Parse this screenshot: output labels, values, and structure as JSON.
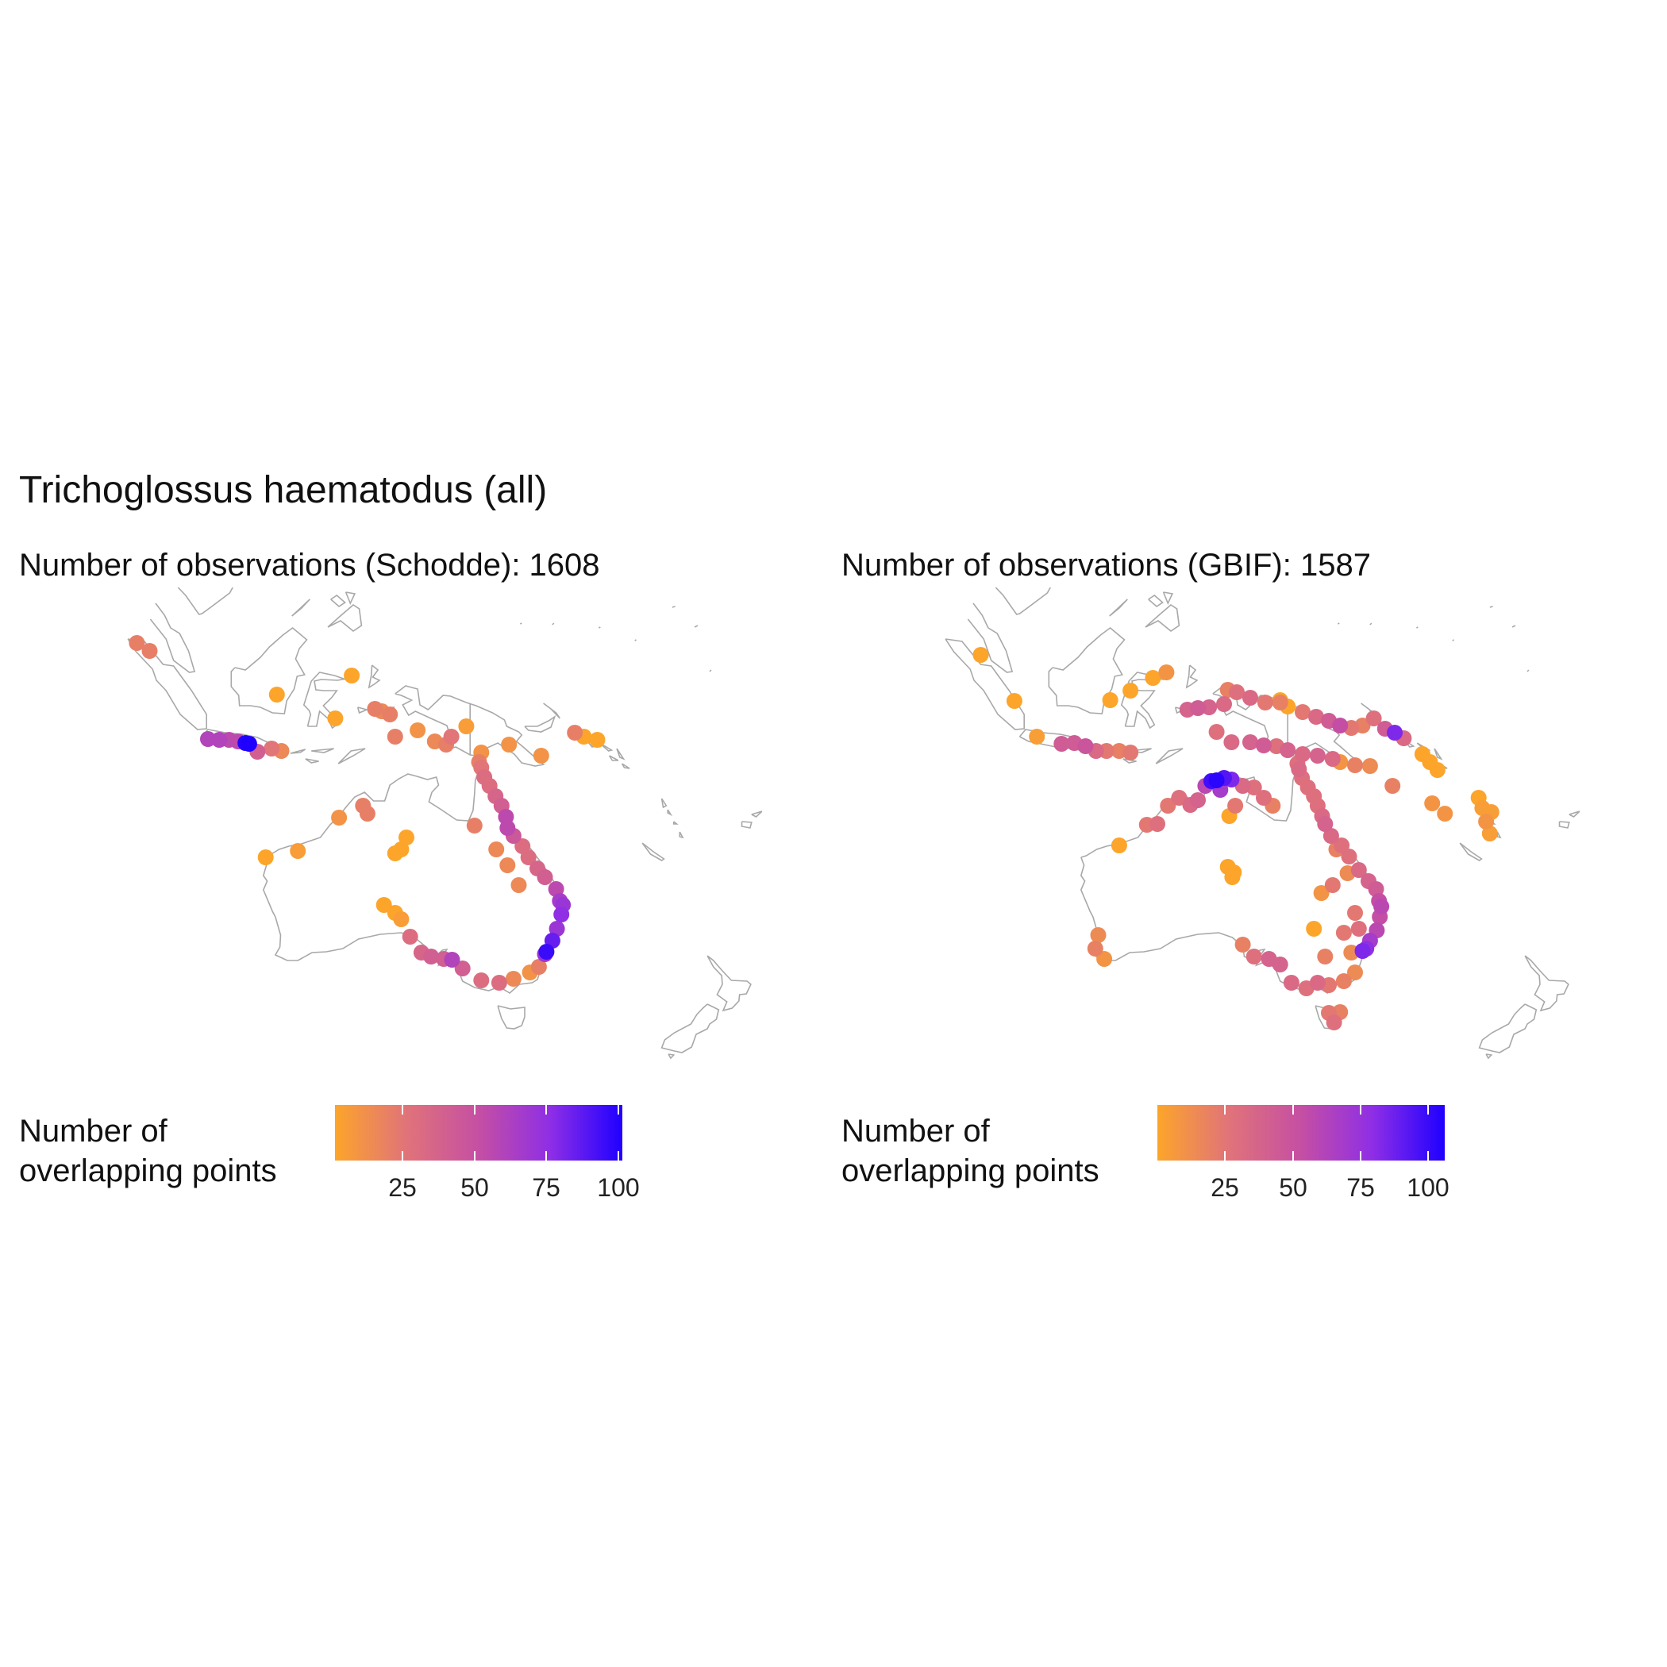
{
  "title": "Trichoglossus haematodus (all)",
  "panels": [
    {
      "subtitle": "Number of observations (Schodde): 1608",
      "legend_title_line1": "Number of",
      "legend_title_line2": "overlapping points",
      "legend_ticks": [
        "25",
        "50",
        "75",
        "100"
      ]
    },
    {
      "subtitle": "Number of observations (GBIF): 1587",
      "legend_title_line1": "Number of",
      "legend_title_line2": "overlapping points",
      "legend_ticks": [
        "25",
        "50",
        "75",
        "100"
      ]
    }
  ],
  "colors": {
    "land_outline": "#a8a8a8",
    "scale_low": "#fca52a",
    "scale_mid": "#c54fa3",
    "scale_high": "#1f00ff"
  },
  "chart_data": [
    {
      "type": "scatter",
      "subtitle": "Number of observations (Schodde): 1608",
      "color_scale": {
        "label": "Number of overlapping points",
        "min": 1,
        "max": 101,
        "ticks": [
          25,
          50,
          75,
          100
        ]
      },
      "points_lon_lat_count": [
        [
          96.5,
          5.0,
          20
        ],
        [
          98.2,
          4.0,
          20
        ],
        [
          115.2,
          -1.5,
          1
        ],
        [
          123.0,
          -4.5,
          1
        ],
        [
          125.2,
          0.9,
          1
        ],
        [
          128.3,
          -3.3,
          20
        ],
        [
          129.2,
          -3.6,
          15
        ],
        [
          130.3,
          -4.0,
          20
        ],
        [
          134.0,
          -6.0,
          10
        ],
        [
          131.0,
          -6.8,
          20
        ],
        [
          136.3,
          -7.4,
          15
        ],
        [
          137.8,
          -7.8,
          20
        ],
        [
          138.5,
          -6.8,
          25
        ],
        [
          140.5,
          -5.5,
          5
        ],
        [
          142.5,
          -8.8,
          10
        ],
        [
          146.2,
          -7.8,
          10
        ],
        [
          150.5,
          -9.2,
          10
        ],
        [
          155.0,
          -6.3,
          20
        ],
        [
          156.2,
          -6.8,
          1
        ],
        [
          158.0,
          -7.2,
          1
        ],
        [
          106.0,
          -7.1,
          60
        ],
        [
          107.5,
          -7.2,
          60
        ],
        [
          108.8,
          -7.2,
          55
        ],
        [
          110.0,
          -7.4,
          55
        ],
        [
          111.0,
          -7.6,
          100
        ],
        [
          111.5,
          -7.7,
          101
        ],
        [
          112.6,
          -8.7,
          40
        ],
        [
          114.5,
          -8.3,
          25
        ],
        [
          115.8,
          -8.6,
          15
        ],
        [
          113.7,
          -22.0,
          1
        ],
        [
          118.0,
          -21.2,
          5
        ],
        [
          123.5,
          -17.0,
          10
        ],
        [
          126.7,
          -15.5,
          20
        ],
        [
          127.3,
          -16.5,
          20
        ],
        [
          132.5,
          -19.5,
          1
        ],
        [
          131.0,
          -21.5,
          1
        ],
        [
          131.8,
          -21.0,
          1
        ],
        [
          131.0,
          -29.0,
          1
        ],
        [
          129.5,
          -28.0,
          1
        ],
        [
          131.8,
          -29.8,
          5
        ],
        [
          133.0,
          -32.0,
          30
        ],
        [
          134.5,
          -34.0,
          35
        ],
        [
          135.8,
          -34.5,
          40
        ],
        [
          137.5,
          -34.8,
          40
        ],
        [
          138.6,
          -34.9,
          60
        ],
        [
          140.0,
          -36.0,
          40
        ],
        [
          142.5,
          -37.5,
          30
        ],
        [
          144.9,
          -37.8,
          30
        ],
        [
          146.8,
          -37.3,
          15
        ],
        [
          149.0,
          -36.5,
          10
        ],
        [
          150.2,
          -35.8,
          20
        ],
        [
          151.0,
          -34.2,
          70
        ],
        [
          151.2,
          -33.9,
          95
        ],
        [
          152.0,
          -32.5,
          85
        ],
        [
          152.6,
          -31.0,
          70
        ],
        [
          153.2,
          -29.2,
          75
        ],
        [
          153.4,
          -28.0,
          70
        ],
        [
          153.0,
          -27.5,
          65
        ],
        [
          152.5,
          -26.0,
          55
        ],
        [
          151.0,
          -24.5,
          40
        ],
        [
          150.0,
          -23.4,
          35
        ],
        [
          148.8,
          -22.0,
          30
        ],
        [
          148.0,
          -20.6,
          30
        ],
        [
          146.8,
          -19.3,
          45
        ],
        [
          146.0,
          -18.3,
          55
        ],
        [
          145.8,
          -16.9,
          55
        ],
        [
          145.2,
          -15.5,
          40
        ],
        [
          144.4,
          -14.3,
          35
        ],
        [
          143.6,
          -13.0,
          30
        ],
        [
          142.9,
          -11.9,
          30
        ],
        [
          142.5,
          -10.7,
          25
        ],
        [
          142.2,
          -10.0,
          20
        ],
        [
          147.5,
          -25.5,
          15
        ],
        [
          146.0,
          -23.0,
          15
        ],
        [
          144.5,
          -21.0,
          15
        ],
        [
          141.6,
          -18.0,
          20
        ]
      ]
    },
    {
      "type": "scatter",
      "subtitle": "Number of observations (GBIF): 1587",
      "color_scale": {
        "label": "Number of overlapping points",
        "min": 1,
        "max": 108,
        "ticks": [
          25,
          50,
          75,
          100
        ]
      },
      "points_lon_lat_count": [
        [
          100.0,
          3.5,
          1
        ],
        [
          104.5,
          -2.3,
          1
        ],
        [
          107.5,
          -6.8,
          5
        ],
        [
          110.8,
          -7.7,
          45
        ],
        [
          112.5,
          -7.6,
          45
        ],
        [
          114.0,
          -8.0,
          50
        ],
        [
          115.4,
          -8.6,
          35
        ],
        [
          116.8,
          -8.6,
          25
        ],
        [
          118.5,
          -8.6,
          20
        ],
        [
          120.0,
          -8.8,
          25
        ],
        [
          117.3,
          -2.2,
          1
        ],
        [
          120.0,
          -1.0,
          1
        ],
        [
          123.0,
          0.6,
          1
        ],
        [
          124.8,
          1.3,
          10
        ],
        [
          127.6,
          -3.4,
          40
        ],
        [
          129.0,
          -3.2,
          45
        ],
        [
          130.5,
          -3.1,
          40
        ],
        [
          132.5,
          -2.7,
          35
        ],
        [
          133.0,
          -0.9,
          20
        ],
        [
          134.2,
          -1.2,
          30
        ],
        [
          136.0,
          -1.9,
          35
        ],
        [
          138.0,
          -2.5,
          25
        ],
        [
          140.0,
          -2.5,
          20
        ],
        [
          141.0,
          -3.0,
          1
        ],
        [
          143.0,
          -3.7,
          25
        ],
        [
          144.8,
          -4.3,
          35
        ],
        [
          146.5,
          -4.8,
          45
        ],
        [
          148.0,
          -5.4,
          55
        ],
        [
          149.5,
          -5.7,
          25
        ],
        [
          151.0,
          -5.4,
          20
        ],
        [
          152.5,
          -4.5,
          30
        ],
        [
          154.0,
          -5.8,
          45
        ],
        [
          155.3,
          -6.3,
          85
        ],
        [
          156.5,
          -7.0,
          35
        ],
        [
          159.0,
          -9.0,
          1
        ],
        [
          160.0,
          -10.0,
          1
        ],
        [
          161.0,
          -11.0,
          1
        ],
        [
          131.5,
          -6.2,
          30
        ],
        [
          133.5,
          -7.5,
          35
        ],
        [
          136.0,
          -7.5,
          40
        ],
        [
          137.8,
          -7.9,
          45
        ],
        [
          139.5,
          -8.0,
          30
        ],
        [
          141.0,
          -8.5,
          40
        ],
        [
          143.0,
          -9.0,
          35
        ],
        [
          145.0,
          -9.2,
          40
        ],
        [
          147.0,
          -9.6,
          35
        ],
        [
          150.0,
          -10.4,
          20
        ],
        [
          152.0,
          -10.5,
          15
        ],
        [
          140.0,
          -2.2,
          1
        ],
        [
          148.0,
          -10.0,
          10
        ],
        [
          155.0,
          -13.0,
          20
        ],
        [
          160.3,
          -15.2,
          10
        ],
        [
          162.0,
          -16.5,
          10
        ],
        [
          166.5,
          -14.5,
          1
        ],
        [
          167.0,
          -15.8,
          5
        ],
        [
          167.5,
          -17.5,
          10
        ],
        [
          168.0,
          -19.0,
          5
        ],
        [
          168.2,
          -16.3,
          5
        ],
        [
          130.8,
          -12.4,
          100
        ],
        [
          131.5,
          -12.3,
          105
        ],
        [
          132.5,
          -12.0,
          95
        ],
        [
          133.5,
          -12.2,
          85
        ],
        [
          132.0,
          -13.5,
          70
        ],
        [
          130.0,
          -13.0,
          60
        ],
        [
          129.0,
          -14.8,
          40
        ],
        [
          128.0,
          -15.4,
          35
        ],
        [
          126.5,
          -14.5,
          30
        ],
        [
          125.0,
          -15.5,
          25
        ],
        [
          123.6,
          -17.8,
          30
        ],
        [
          122.2,
          -17.9,
          25
        ],
        [
          135.0,
          -13.0,
          35
        ],
        [
          136.5,
          -13.2,
          30
        ],
        [
          137.8,
          -14.5,
          30
        ],
        [
          139.0,
          -15.5,
          20
        ],
        [
          133.2,
          -16.8,
          1
        ],
        [
          134.0,
          -15.5,
          25
        ],
        [
          118.5,
          -20.5,
          1
        ],
        [
          133.0,
          -23.2,
          1
        ],
        [
          133.8,
          -23.9,
          1
        ],
        [
          133.6,
          -24.5,
          1
        ],
        [
          115.7,
          -31.8,
          15
        ],
        [
          115.3,
          -33.5,
          20
        ],
        [
          116.5,
          -34.8,
          10
        ],
        [
          135.0,
          -33.0,
          20
        ],
        [
          136.5,
          -34.5,
          30
        ],
        [
          138.5,
          -34.8,
          40
        ],
        [
          140.0,
          -35.5,
          40
        ],
        [
          141.5,
          -37.8,
          35
        ],
        [
          143.5,
          -38.5,
          30
        ],
        [
          145.0,
          -37.8,
          35
        ],
        [
          146.5,
          -38.1,
          25
        ],
        [
          148.5,
          -37.6,
          20
        ],
        [
          150.0,
          -36.5,
          15
        ],
        [
          147.2,
          -42.8,
          30
        ],
        [
          146.5,
          -41.6,
          25
        ],
        [
          148.0,
          -41.5,
          20
        ],
        [
          151.0,
          -33.8,
          85
        ],
        [
          151.5,
          -33.5,
          80
        ],
        [
          152.0,
          -32.5,
          70
        ],
        [
          152.9,
          -31.2,
          60
        ],
        [
          153.3,
          -29.5,
          55
        ],
        [
          153.5,
          -28.2,
          60
        ],
        [
          153.2,
          -27.5,
          55
        ],
        [
          152.8,
          -26.0,
          45
        ],
        [
          151.8,
          -25.0,
          40
        ],
        [
          150.5,
          -23.6,
          35
        ],
        [
          149.2,
          -21.9,
          30
        ],
        [
          148.2,
          -20.5,
          30
        ],
        [
          146.8,
          -19.3,
          35
        ],
        [
          146.0,
          -17.8,
          40
        ],
        [
          145.6,
          -16.8,
          35
        ],
        [
          145.0,
          -15.5,
          30
        ],
        [
          144.5,
          -14.3,
          30
        ],
        [
          143.7,
          -13.2,
          30
        ],
        [
          142.9,
          -12.0,
          30
        ],
        [
          142.5,
          -10.9,
          35
        ],
        [
          142.3,
          -10.2,
          30
        ],
        [
          149.0,
          -24.0,
          15
        ],
        [
          147.0,
          -25.5,
          25
        ],
        [
          145.5,
          -26.5,
          10
        ],
        [
          147.5,
          -21.0,
          20
        ],
        [
          150.0,
          -29.0,
          25
        ],
        [
          144.5,
          -31.0,
          1
        ],
        [
          146.0,
          -34.5,
          20
        ],
        [
          148.5,
          -31.5,
          25
        ],
        [
          150.5,
          -31.0,
          30
        ],
        [
          149.5,
          -34.0,
          15
        ]
      ]
    }
  ]
}
